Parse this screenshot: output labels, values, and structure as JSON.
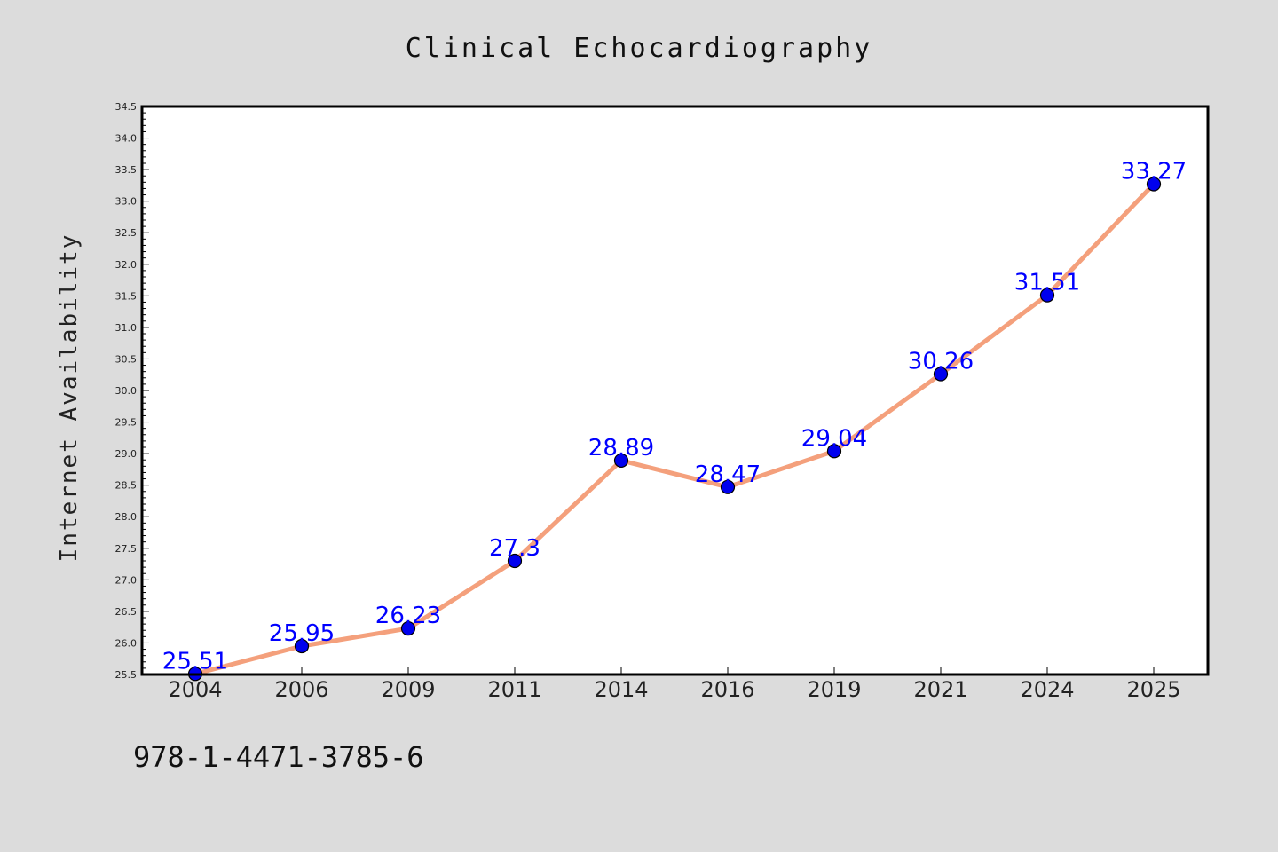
{
  "chart_data": {
    "type": "line",
    "title": "Clinical Echocardiography",
    "xlabel": "",
    "ylabel": "Internet Availability",
    "categories": [
      "2004",
      "2006",
      "2009",
      "2011",
      "2014",
      "2016",
      "2019",
      "2021",
      "2024",
      "2025"
    ],
    "series": [
      {
        "values": [
          25.51,
          25.95,
          26.23,
          27.3,
          28.89,
          28.47,
          29.04,
          30.26,
          31.51,
          33.27
        ],
        "labels": [
          "25.51",
          "25.95",
          "26.23",
          "27.3",
          "28.89",
          "28.47",
          "29.04",
          "30.26",
          "31.51",
          "33.27"
        ],
        "line_color": "#f4a07c",
        "marker_color": "#0000ee",
        "label_color": "#0000ff"
      }
    ],
    "ylim": [
      25.5,
      34.5
    ],
    "yticks": [
      "25.5",
      "26.0",
      "26.5",
      "27.0",
      "27.5",
      "28.0",
      "28.5",
      "29.0",
      "29.5",
      "30.0",
      "30.5",
      "31.0",
      "31.5",
      "32.0",
      "32.5",
      "33.0",
      "33.5",
      "34.0",
      "34.5"
    ],
    "grid": false,
    "legend": "none"
  },
  "footer": {
    "isbn": "978-1-4471-3785-6"
  },
  "colors": {
    "page_background": "#dcdcdc",
    "plot_background": "#ffffff",
    "axis": "#000000"
  }
}
